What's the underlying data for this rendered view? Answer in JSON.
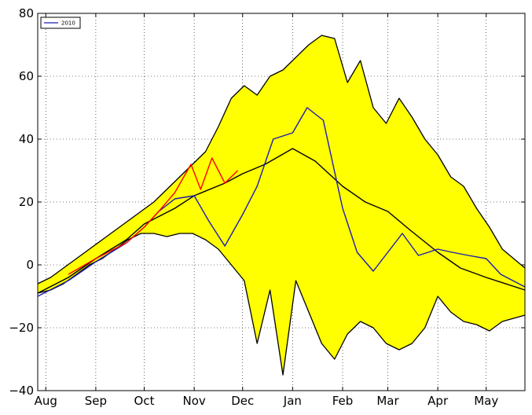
{
  "chart_data": {
    "type": "line",
    "title": "",
    "xlabel": "",
    "ylabel": "",
    "ylim": [
      -40,
      80
    ],
    "xlim": [
      "Jul 27",
      "May 25"
    ],
    "grid": true,
    "grid_style": "dotted",
    "legend": {
      "placement": "top-left",
      "entries": [
        "2010"
      ]
    },
    "y_ticks": [
      "80",
      "60",
      "40",
      "20",
      "0",
      "−20",
      "−40"
    ],
    "y_tick_values": [
      80,
      60,
      40,
      20,
      0,
      -20,
      -40
    ],
    "x_ticks": [
      {
        "label": "Aug",
        "date": "Aug 1"
      },
      {
        "label": "Sep",
        "date": "Sep 1"
      },
      {
        "label": "Oct",
        "date": "Oct 1"
      },
      {
        "label": "Nov",
        "date": "Nov 1"
      },
      {
        "label": "Dec",
        "date": "Dec 1"
      },
      {
        "label": "Jan",
        "date": "Jan 1"
      },
      {
        "label": "Feb",
        "date": "Feb 1"
      },
      {
        "label": "Mar",
        "date": "Mar 1"
      },
      {
        "label": "Apr",
        "date": "Apr 1"
      },
      {
        "label": "May",
        "date": "May 1"
      }
    ],
    "colors": {
      "band_fill": "#ffff00",
      "band_edge": "#000000",
      "mean": "#000000",
      "series_2010": "#1c1cb0",
      "series_red": "#ff0000"
    },
    "band": {
      "name": "",
      "x": [
        "Jul 27",
        "Aug 4",
        "Aug 12",
        "Aug 20",
        "Aug 28",
        "Sep 5",
        "Sep 13",
        "Sep 21",
        "Sep 29",
        "Oct 7",
        "Oct 15",
        "Oct 23",
        "Oct 31",
        "Nov 8",
        "Nov 16",
        "Nov 24",
        "Dec 2",
        "Dec 10",
        "Dec 18",
        "Dec 26",
        "Jan 3",
        "Jan 11",
        "Jan 19",
        "Jan 27",
        "Feb 4",
        "Feb 12",
        "Feb 20",
        "Feb 28",
        "Mar 8",
        "Mar 16",
        "Mar 24",
        "Apr 1",
        "Apr 9",
        "Apr 17",
        "Apr 25",
        "May 3",
        "May 11",
        "May 25"
      ],
      "upper": [
        -6,
        -4,
        -1,
        2,
        5,
        8,
        11,
        14,
        17,
        20,
        24,
        28,
        32,
        36,
        44,
        53,
        57,
        54,
        60,
        62,
        66,
        70,
        73,
        72,
        58,
        65,
        50,
        45,
        53,
        47,
        40,
        35,
        28,
        25,
        18,
        12,
        5,
        -1
      ],
      "lower": [
        -9,
        -8,
        -6,
        -3,
        0,
        2,
        5,
        8,
        10,
        10,
        9,
        10,
        10,
        8,
        5,
        0,
        -5,
        -25,
        -8,
        -35,
        -5,
        -15,
        -25,
        -30,
        -22,
        -18,
        -20,
        -25,
        -27,
        -25,
        -20,
        -10,
        -15,
        -18,
        -19,
        -21,
        -18,
        -16
      ]
    },
    "series": [
      {
        "name": "",
        "role": "mean",
        "x": [
          "Jul 27",
          "Aug 15",
          "Sep 1",
          "Sep 20",
          "Oct 1",
          "Oct 20",
          "Nov 1",
          "Nov 20",
          "Dec 1",
          "Dec 15",
          "Jan 1",
          "Jan 15",
          "Feb 1",
          "Feb 15",
          "Mar 1",
          "Mar 15",
          "Apr 1",
          "Apr 15",
          "May 1",
          "May 25"
        ],
        "values": [
          -9,
          -4,
          2,
          8,
          13,
          18,
          22,
          26,
          29,
          32,
          37,
          33,
          25,
          20,
          17,
          11,
          4,
          -1,
          -4,
          -8
        ]
      },
      {
        "name": "2010",
        "role": "highlighted year",
        "x": [
          "Jul 27",
          "Aug 15",
          "Sep 1",
          "Sep 20",
          "Oct 1",
          "Oct 10",
          "Oct 20",
          "Nov 1",
          "Nov 10",
          "Nov 20",
          "Dec 1",
          "Dec 10",
          "Dec 20",
          "Jan 1",
          "Jan 10",
          "Jan 20",
          "Feb 1",
          "Feb 10",
          "Feb 20",
          "Mar 1",
          "Mar 10",
          "Mar 20",
          "Apr 1",
          "Apr 10",
          "Apr 20",
          "May 1",
          "May 10",
          "May 25"
        ],
        "values": [
          -10,
          -5,
          1,
          7,
          12,
          17,
          21,
          22,
          14,
          6,
          16,
          25,
          40,
          42,
          50,
          46,
          18,
          4,
          -2,
          4,
          10,
          3,
          5,
          4,
          3,
          2,
          -3,
          -7
        ]
      },
      {
        "name": "",
        "role": "current year (partial)",
        "x": [
          "Aug 15",
          "Sep 1",
          "Sep 20",
          "Oct 1",
          "Oct 10",
          "Oct 20",
          "Oct 30",
          "Nov 5",
          "Nov 12",
          "Nov 20",
          "Nov 28"
        ],
        "values": [
          -3,
          2,
          7,
          12,
          17,
          23,
          32,
          24,
          34,
          26,
          30
        ]
      }
    ]
  }
}
